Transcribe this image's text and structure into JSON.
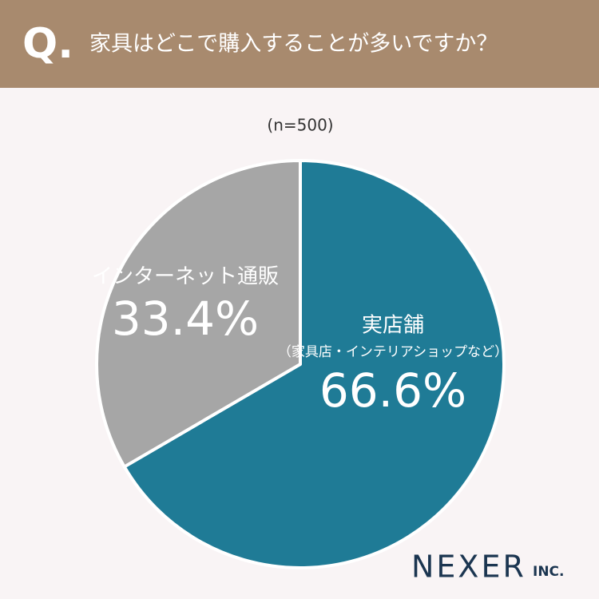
{
  "header": {
    "marker": "Q.",
    "question": "家具はどこで購入することが多いですか？"
  },
  "chart_data": {
    "type": "pie",
    "subtitle": "(n=500)",
    "categories": [
      "実店舗",
      "インターネット通販"
    ],
    "annotations": [
      "（家具店・インテリアショップなど）"
    ],
    "values": [
      66.6,
      33.4
    ],
    "value_labels": [
      "66.6%",
      "33.4%"
    ],
    "colors": [
      "#1f7b96",
      "#a6a6a6"
    ]
  },
  "logo": {
    "name": "NEXER",
    "suffix": "INC."
  }
}
